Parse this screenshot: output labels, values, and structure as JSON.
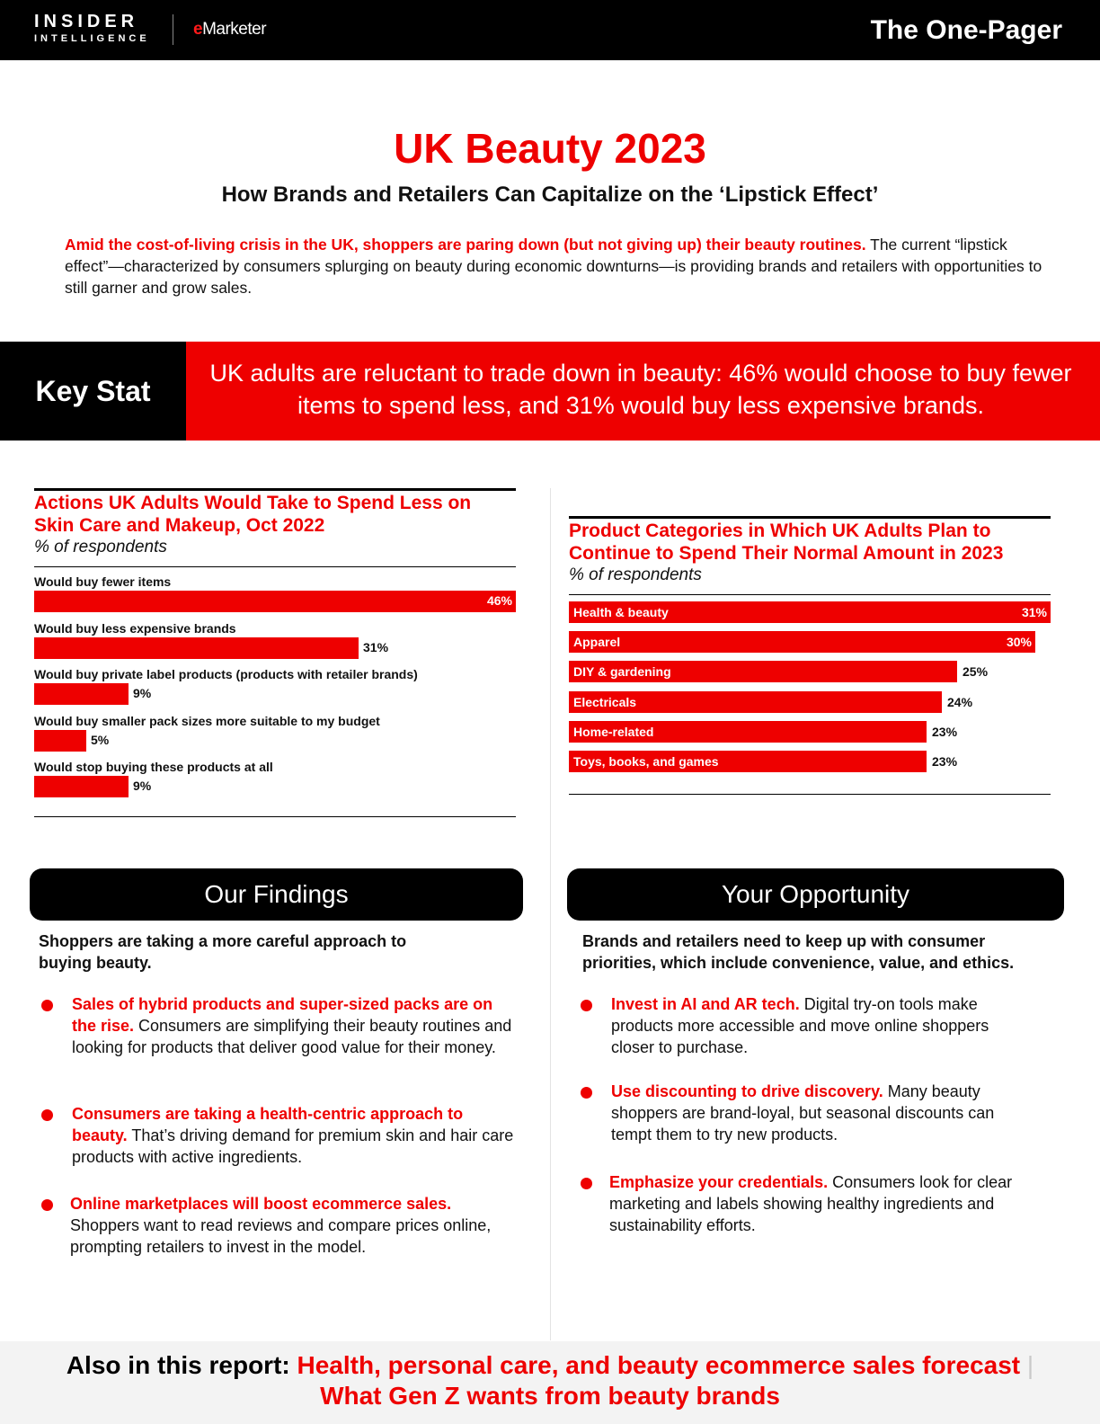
{
  "header": {
    "logo_line1": "INSIDER",
    "logo_line2": "INTELLIGENCE",
    "logo_em_e": "e",
    "logo_em_rest": "Marketer",
    "badge": "The One-Pager"
  },
  "title": "UK Beauty 2023",
  "subtitle": "How Brands and Retailers Can Capitalize on the ‘Lipstick Effect’",
  "intro": {
    "highlight": "Amid the cost-of-living crisis in the UK, shoppers are paring down (but not giving up) their beauty routines.",
    "rest": " The current “lipstick effect”—characterized by consumers splurging on beauty during economic downturns—is providing brands and retailers with opportunities to still garner and grow sales."
  },
  "key_stat": {
    "label": "Key Stat",
    "text": "UK adults are reluctant to trade down in beauty: 46% would choose to buy fewer items to spend less, and 31% would buy less expensive brands."
  },
  "chart_data": [
    {
      "type": "bar",
      "title": "Actions UK Adults Would Take to Spend Less on Skin Care and Makeup, Oct 2022",
      "subtitle": "% of respondents",
      "categories": [
        "Would buy fewer items",
        "Would buy less expensive brands",
        "Would buy private label products (products with retailer brands)",
        "Would buy smaller pack sizes more suitable to my budget",
        "Would stop buying these products at all"
      ],
      "values": [
        46,
        31,
        9,
        5,
        9
      ],
      "value_labels": [
        "46%",
        "31%",
        "9%",
        "5%",
        "9%"
      ],
      "orientation": "horizontal",
      "max": 46,
      "bar_color": "#ee0000"
    },
    {
      "type": "bar",
      "title": "Product Categories in Which UK Adults Plan to Continue to Spend Their Normal Amount in 2023",
      "subtitle": "% of respondents",
      "categories": [
        "Health & beauty",
        "Apparel",
        "DIY & gardening",
        "Electricals",
        "Home-related",
        "Toys, books, and games"
      ],
      "values": [
        31,
        30,
        25,
        24,
        23,
        23
      ],
      "value_labels": [
        "31%",
        "30%",
        "25%",
        "24%",
        "23%",
        "23%"
      ],
      "orientation": "horizontal",
      "max": 31,
      "bar_color": "#ee0000"
    }
  ],
  "findings": {
    "heading": "Our Findings",
    "lead": "Shoppers are taking a more careful approach to buying beauty.",
    "bullets": [
      {
        "hl": "Sales of hybrid products and super-sized packs are on the rise.",
        "text": " Consumers are simplifying their beauty routines and looking for products that deliver good value for their money."
      },
      {
        "hl": "Consumers are taking a health-centric approach to beauty.",
        "text": " That’s driving demand for premium skin and hair care products with active ingredients."
      },
      {
        "hl": "Online marketplaces will boost ecommerce sales.",
        "text": " Shoppers want to read reviews and compare prices online, prompting retailers to invest in the model."
      }
    ]
  },
  "opportunity": {
    "heading": "Your Opportunity",
    "lead": "Brands and retailers need to keep up with consumer priorities, which include convenience, value, and ethics.",
    "bullets": [
      {
        "hl": "Invest in AI and AR tech.",
        "text": " Digital try-on tools make products more accessible and move online shoppers closer to purchase."
      },
      {
        "hl": "Use discounting to drive discovery.",
        "text": " Many beauty shoppers are brand-loyal, but seasonal discounts can tempt them to try new products."
      },
      {
        "hl": "Emphasize your credentials.",
        "text": " Consumers look for clear marketing and labels showing healthy ingredients and sustainability efforts."
      }
    ]
  },
  "footer": {
    "lead": "Also in this report:",
    "item1": "Health, personal care, and beauty ecommerce sales forecast",
    "separator": "|",
    "item2": "What Gen Z wants from beauty brands"
  },
  "colors": {
    "accent": "#ee0000",
    "dark": "#000000",
    "footer_bg": "#f3f3f3"
  }
}
